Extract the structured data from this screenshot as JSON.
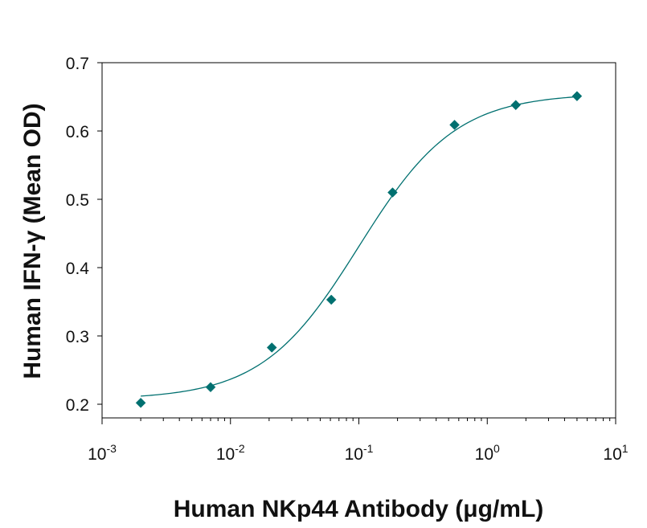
{
  "chart_data": {
    "type": "scatter",
    "xscale": "log",
    "xlim": [
      0.001,
      10
    ],
    "ylim": [
      0.18,
      0.7
    ],
    "xlabel": "Human NKp44 Antibody (μg/mL)",
    "ylabel": "Human IFN-γ (Mean OD)",
    "x_ticks": [
      {
        "value": 0.001,
        "base": "10",
        "exp": "-3"
      },
      {
        "value": 0.01,
        "base": "10",
        "exp": "-2"
      },
      {
        "value": 0.1,
        "base": "10",
        "exp": "-1"
      },
      {
        "value": 1,
        "base": "10",
        "exp": "0"
      },
      {
        "value": 10,
        "base": "10",
        "exp": "1"
      }
    ],
    "y_ticks": [
      {
        "value": 0.2,
        "label": "0.2"
      },
      {
        "value": 0.3,
        "label": "0.3"
      },
      {
        "value": 0.4,
        "label": "0.4"
      },
      {
        "value": 0.5,
        "label": "0.5"
      },
      {
        "value": 0.6,
        "label": "0.6"
      },
      {
        "value": 0.7,
        "label": "0.7"
      }
    ],
    "series": [
      {
        "marker": "diamond",
        "color": "#007070",
        "x": [
          0.002,
          0.007,
          0.021,
          0.061,
          0.183,
          0.556,
          1.667,
          5.0
        ],
        "y": [
          0.202,
          0.225,
          0.283,
          0.353,
          0.51,
          0.609,
          0.638,
          0.651
        ],
        "fit": {
          "type": "four-parameter-logistic",
          "bottom": 0.207,
          "top": 0.655,
          "ec50": 0.1,
          "hill": 1.15
        }
      }
    ],
    "grid": false,
    "legend": "none"
  }
}
